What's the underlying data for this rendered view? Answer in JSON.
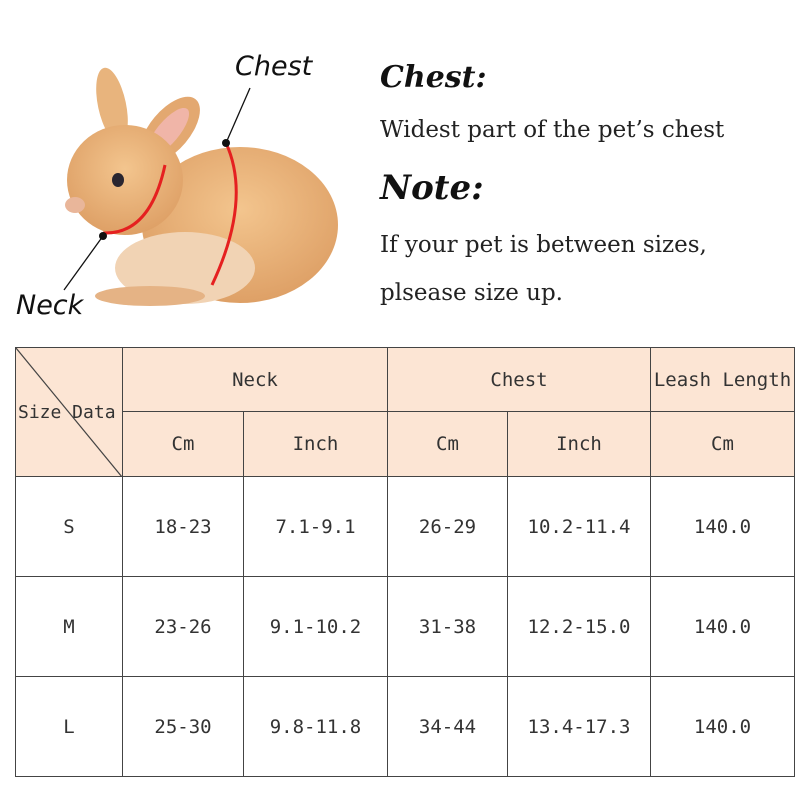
{
  "diagram": {
    "chest_label": "Chest",
    "neck_label": "Neck",
    "measure_line_color": "#e52020"
  },
  "info": {
    "chest_heading": "Chest:",
    "chest_text": "Widest part of the pet’s chest",
    "note_heading": "Note:",
    "note_line1": "If your pet is between sizes,",
    "note_line2": "plsease size up."
  },
  "table": {
    "corner": "Size Data",
    "groups": [
      "Neck",
      "Chest",
      "Leash Length"
    ],
    "units": [
      "Cm",
      "Inch",
      "Cm",
      "Inch",
      "Cm"
    ],
    "rows": [
      [
        "S",
        "18-23",
        "7.1-9.1",
        "26-29",
        "10.2-11.4",
        "140.0"
      ],
      [
        "M",
        "23-26",
        "9.1-10.2",
        "31-38",
        "12.2-15.0",
        "140.0"
      ],
      [
        "L",
        "25-30",
        "9.8-11.8",
        "34-44",
        "13.4-17.3",
        "140.0"
      ]
    ],
    "header_color": "#fce5d4"
  }
}
